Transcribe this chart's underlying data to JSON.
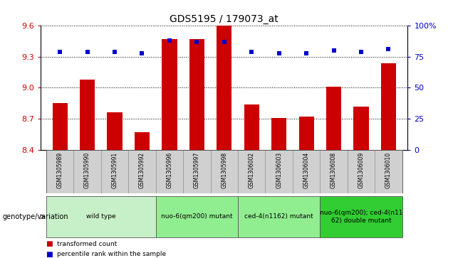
{
  "title": "GDS5195 / 179073_at",
  "samples": [
    "GSM1305989",
    "GSM1305990",
    "GSM1305991",
    "GSM1305992",
    "GSM1305996",
    "GSM1305997",
    "GSM1305998",
    "GSM1306002",
    "GSM1306003",
    "GSM1306004",
    "GSM1306008",
    "GSM1306009",
    "GSM1306010"
  ],
  "bar_values": [
    8.85,
    9.08,
    8.76,
    8.57,
    9.47,
    9.47,
    9.6,
    8.84,
    8.71,
    8.72,
    9.01,
    8.82,
    9.24
  ],
  "percentile_values": [
    79,
    79,
    79,
    78,
    88,
    87,
    87,
    79,
    78,
    78,
    80,
    79,
    81
  ],
  "bar_color": "#cc0000",
  "dot_color": "#0000cc",
  "ylim_left": [
    8.4,
    9.6
  ],
  "ylim_right": [
    0,
    100
  ],
  "yticks_left": [
    8.4,
    8.7,
    9.0,
    9.3,
    9.6
  ],
  "yticks_right": [
    0,
    25,
    50,
    75,
    100
  ],
  "groups": [
    {
      "label": "wild type",
      "indices": [
        0,
        1,
        2,
        3
      ],
      "color": "#c8f0c8"
    },
    {
      "label": "nuo-6(qm200) mutant",
      "indices": [
        4,
        5,
        6
      ],
      "color": "#90ee90"
    },
    {
      "label": "ced-4(n1162) mutant",
      "indices": [
        7,
        8,
        9
      ],
      "color": "#90ee90"
    },
    {
      "label": "nuo-6(qm200); ced-4(n11\n62) double mutant",
      "indices": [
        10,
        11,
        12
      ],
      "color": "#32cd32"
    }
  ],
  "bar_width": 0.55,
  "background_color": "#ffffff",
  "plot_bg_color": "#ffffff",
  "genotype_label": "genotype/variation",
  "legend_label_bar": "transformed count",
  "legend_label_dot": "percentile rank within the sample",
  "sample_col_color": "#d0d0d0",
  "grid_color": "#000000"
}
